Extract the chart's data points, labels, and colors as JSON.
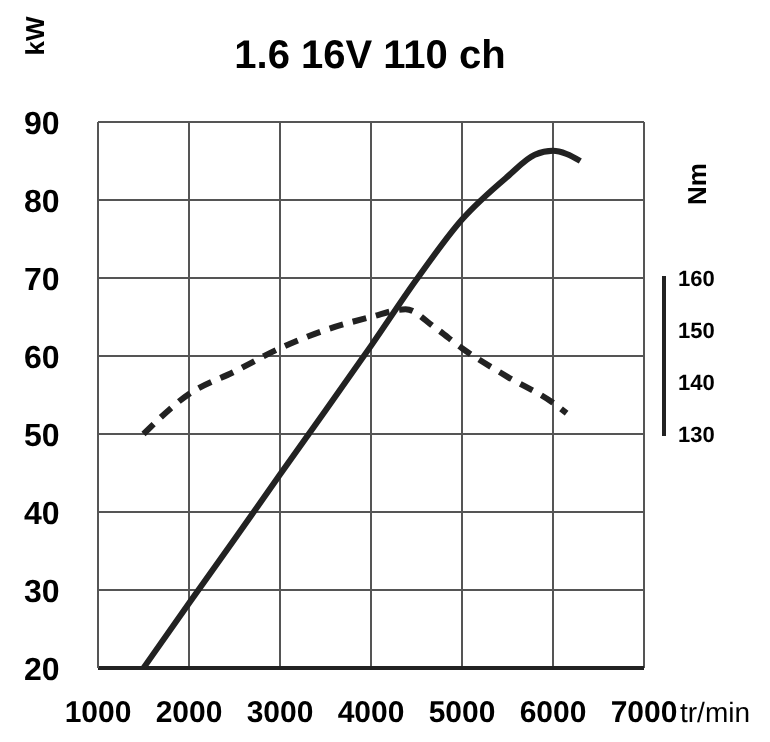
{
  "chart_data": {
    "type": "line",
    "title": "1.6 16V 110 ch",
    "xlabel": "tr/min",
    "ylabel": "kW",
    "y2label": "Nm",
    "xlim": [
      1000,
      7000
    ],
    "xticks": [
      1000,
      2000,
      3000,
      4000,
      5000,
      6000,
      7000
    ],
    "ylim": [
      20,
      90
    ],
    "yticks": [
      20,
      30,
      40,
      50,
      60,
      70,
      80,
      90
    ],
    "y2lim": [
      85,
      190
    ],
    "y2ticks": [
      130,
      140,
      150,
      160
    ],
    "grid": true,
    "series": [
      {
        "color": "#222222",
        "line_style": "solid",
        "axis": "y",
        "x": [
          1500,
          2000,
          2500,
          3000,
          3500,
          4000,
          4500,
          5000,
          5500,
          5800,
          6000,
          6150,
          6300
        ],
        "values": [
          20,
          28.3,
          36.5,
          44.8,
          53,
          61.3,
          69.8,
          77.5,
          83,
          85.8,
          86.3,
          85.9,
          85
        ]
      },
      {
        "color": "#222222",
        "line_style": "dashed",
        "axis": "y2",
        "x": [
          1500,
          2000,
          2500,
          3000,
          3500,
          4000,
          4380,
          4700,
          5000,
          5500,
          6000,
          6150
        ],
        "values": [
          130,
          137.7,
          142,
          146.5,
          150,
          152.5,
          154,
          150.5,
          146.5,
          141,
          136,
          134
        ]
      }
    ]
  }
}
